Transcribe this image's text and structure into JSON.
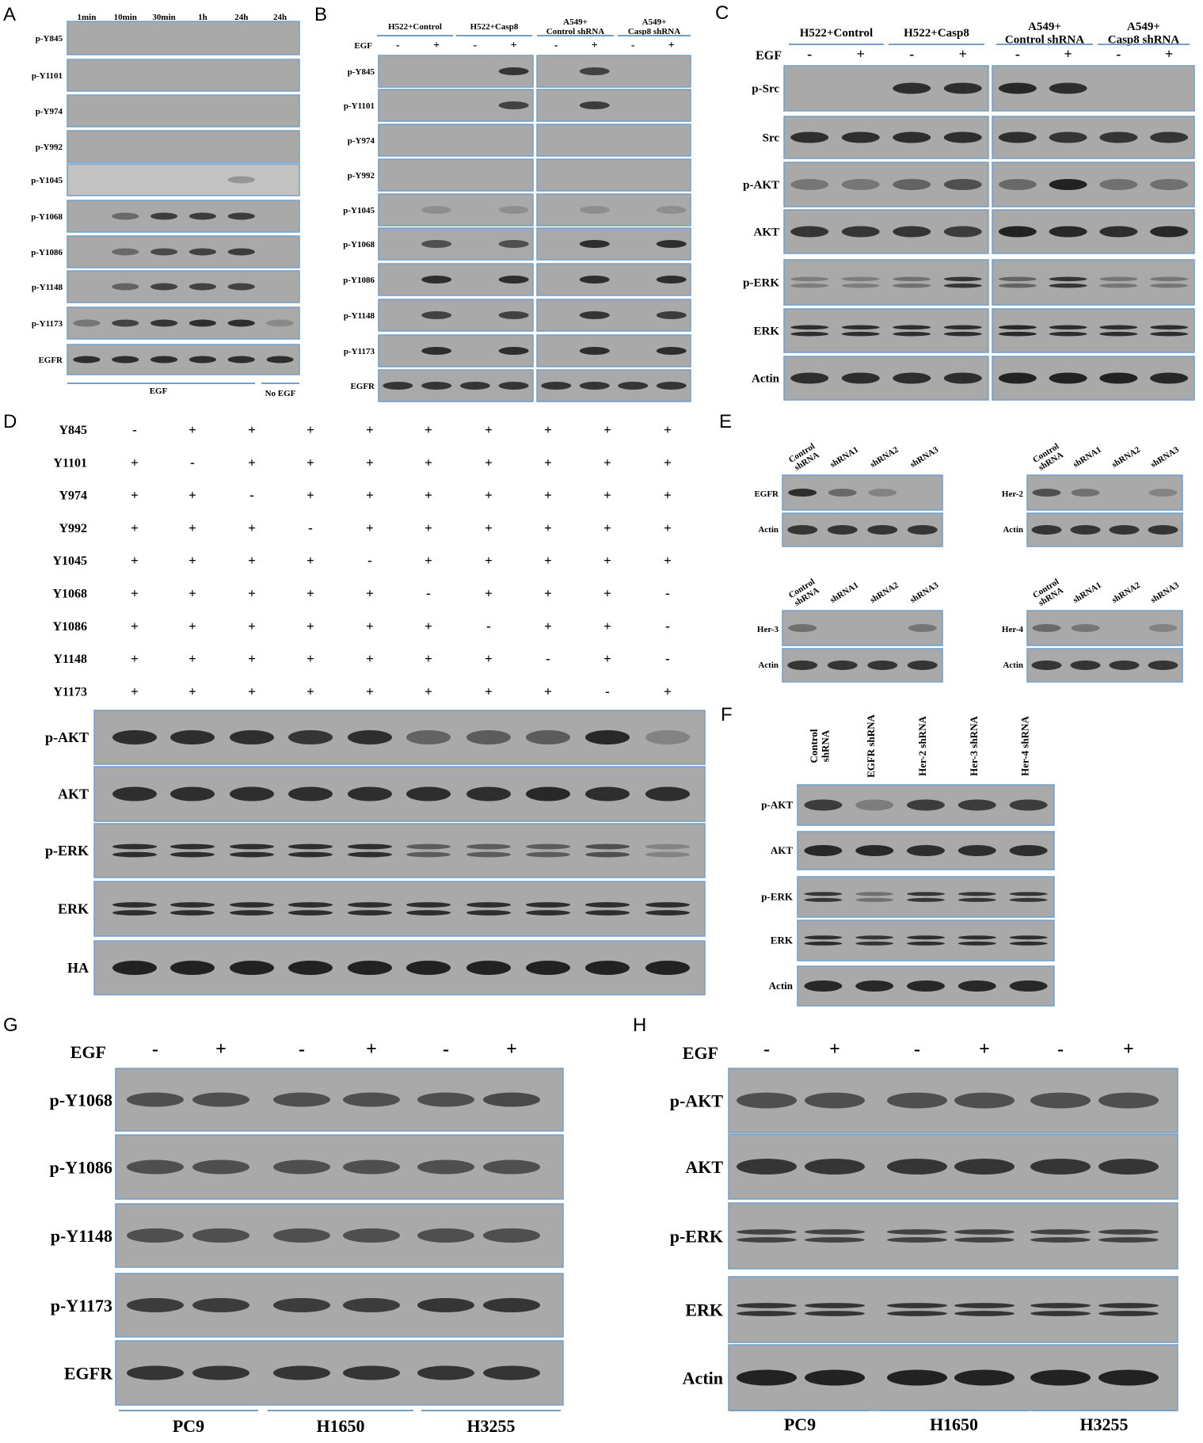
{
  "figure": {
    "panels": [
      {
        "letter": "A",
        "columns": [
          "1min",
          "10min",
          "30min",
          "1h",
          "24h",
          "24h"
        ],
        "rows": [
          {
            "label": "p-Y845",
            "bands": [
              0,
              0,
              0,
              0,
              0,
              0
            ]
          },
          {
            "label": "p-Y1101",
            "bands": [
              0,
              0,
              0,
              0,
              0,
              0
            ]
          },
          {
            "label": "p-Y974",
            "bands": [
              0,
              0,
              0,
              0,
              0,
              0
            ]
          },
          {
            "label": "p-Y992",
            "bands": [
              0,
              0,
              0,
              0,
              0,
              0
            ]
          },
          {
            "label": "p-Y1045",
            "bands": [
              0,
              0,
              0,
              0,
              0.2,
              0
            ]
          },
          {
            "label": "p-Y1068",
            "bands": [
              0,
              0.4,
              0.75,
              0.75,
              0.75,
              0
            ]
          },
          {
            "label": "p-Y1086",
            "bands": [
              0,
              0.4,
              0.65,
              0.7,
              0.75,
              0
            ]
          },
          {
            "label": "p-Y1148",
            "bands": [
              0,
              0.45,
              0.7,
              0.7,
              0.7,
              0
            ]
          },
          {
            "label": "p-Y1173",
            "bands": [
              0.3,
              0.7,
              0.8,
              0.85,
              0.85,
              0.15
            ]
          },
          {
            "label": "EGFR",
            "bands": [
              0.85,
              0.85,
              0.85,
              0.85,
              0.85,
              0.85
            ]
          }
        ],
        "bottom_groups": [
          {
            "label": "EGF"
          },
          {
            "label": "No EGF"
          }
        ]
      },
      {
        "letter": "B",
        "treatment_label": "EGF",
        "treatment_signs": [
          "-",
          "+",
          "-",
          "+",
          "-",
          "+",
          "-",
          "+"
        ],
        "groups": [
          "H522+Control",
          "H522+Casp8",
          "A549+\nControl shRNA",
          "A549+\nCasp8 shRNA"
        ],
        "rows": [
          {
            "label": "p-Y845",
            "bands": [
              0,
              0,
              0,
              0.8,
              0,
              0.7,
              0,
              0
            ]
          },
          {
            "label": "p-Y1101",
            "bands": [
              0,
              0,
              0,
              0.7,
              0,
              0.75,
              0,
              0
            ]
          },
          {
            "label": "p-Y974",
            "bands": [
              0,
              0,
              0,
              0,
              0,
              0,
              0,
              0
            ]
          },
          {
            "label": "p-Y992",
            "bands": [
              0,
              0,
              0,
              0,
              0,
              0,
              0,
              0
            ]
          },
          {
            "label": "p-Y1045",
            "bands": [
              0,
              0.12,
              0,
              0.12,
              0,
              0.12,
              0,
              0.12
            ]
          },
          {
            "label": "p-Y1068",
            "bands": [
              0,
              0.6,
              0,
              0.6,
              0,
              0.85,
              0,
              0.85
            ]
          },
          {
            "label": "p-Y1086",
            "bands": [
              0,
              0.85,
              0,
              0.85,
              0,
              0.85,
              0,
              0.85
            ]
          },
          {
            "label": "p-Y1148",
            "bands": [
              0,
              0.7,
              0,
              0.7,
              0,
              0.8,
              0,
              0.75
            ]
          },
          {
            "label": "p-Y1173",
            "bands": [
              0,
              0.85,
              0,
              0.85,
              0,
              0.85,
              0,
              0.85
            ]
          },
          {
            "label": "EGFR",
            "bands": [
              0.8,
              0.8,
              0.8,
              0.8,
              0.8,
              0.8,
              0.8,
              0.8
            ]
          }
        ]
      },
      {
        "letter": "C",
        "treatment_label": "EGF",
        "treatment_signs": [
          "-",
          "+",
          "-",
          "+",
          "-",
          "+",
          "-",
          "+"
        ],
        "groups": [
          "H522+Control",
          "H522+Casp8",
          "A549+\nControl shRNA",
          "A549+\nCasp8 shRNA"
        ],
        "rows": [
          {
            "label": "p-Src",
            "bands": [
              0,
              0,
              0.85,
              0.85,
              0.9,
              0.85,
              0,
              0
            ]
          },
          {
            "label": "Src",
            "bands": [
              0.85,
              0.85,
              0.85,
              0.85,
              0.85,
              0.8,
              0.8,
              0.8
            ]
          },
          {
            "label": "p-AKT",
            "bands": [
              0.3,
              0.3,
              0.45,
              0.6,
              0.4,
              0.95,
              0.35,
              0.35
            ]
          },
          {
            "label": "AKT",
            "bands": [
              0.8,
              0.8,
              0.8,
              0.75,
              0.95,
              0.9,
              0.85,
              0.9
            ]
          },
          {
            "label": "p-ERK",
            "bands": [
              0.25,
              0.25,
              0.35,
              0.8,
              0.45,
              0.8,
              0.3,
              0.3
            ]
          },
          {
            "label": "ERK",
            "bands": [
              0.85,
              0.85,
              0.85,
              0.85,
              0.9,
              0.85,
              0.85,
              0.85
            ]
          },
          {
            "label": "Actin",
            "bands": [
              0.85,
              0.85,
              0.85,
              0.85,
              0.95,
              0.95,
              0.95,
              0.9
            ]
          }
        ]
      },
      {
        "letter": "D",
        "mutation_grid": [
          {
            "label": "Y845",
            "signs": [
              "-",
              "+",
              "+",
              "+",
              "+",
              "+",
              "+",
              "+",
              "+",
              "+"
            ]
          },
          {
            "label": "Y1101",
            "signs": [
              "+",
              "-",
              "+",
              "+",
              "+",
              "+",
              "+",
              "+",
              "+",
              "+"
            ]
          },
          {
            "label": "Y974",
            "signs": [
              "+",
              "+",
              "-",
              "+",
              "+",
              "+",
              "+",
              "+",
              "+",
              "+"
            ]
          },
          {
            "label": "Y992",
            "signs": [
              "+",
              "+",
              "+",
              "-",
              "+",
              "+",
              "+",
              "+",
              "+",
              "+"
            ]
          },
          {
            "label": "Y1045",
            "signs": [
              "+",
              "+",
              "+",
              "+",
              "-",
              "+",
              "+",
              "+",
              "+",
              "+"
            ]
          },
          {
            "label": "Y1068",
            "signs": [
              "+",
              "+",
              "+",
              "+",
              "+",
              "-",
              "+",
              "+",
              "+",
              "-"
            ]
          },
          {
            "label": "Y1086",
            "signs": [
              "+",
              "+",
              "+",
              "+",
              "+",
              "+",
              "-",
              "+",
              "+",
              "-"
            ]
          },
          {
            "label": "Y1148",
            "signs": [
              "+",
              "+",
              "+",
              "+",
              "+",
              "+",
              "+",
              "-",
              "+",
              "-"
            ]
          },
          {
            "label": "Y1173",
            "signs": [
              "+",
              "+",
              "+",
              "+",
              "+",
              "+",
              "+",
              "+",
              "-",
              "+"
            ]
          }
        ],
        "rows": [
          {
            "label": "p-AKT",
            "bands": [
              0.85,
              0.85,
              0.85,
              0.8,
              0.85,
              0.45,
              0.5,
              0.5,
              0.9,
              0.2
            ]
          },
          {
            "label": "AKT",
            "bands": [
              0.85,
              0.85,
              0.85,
              0.85,
              0.85,
              0.85,
              0.85,
              0.9,
              0.85,
              0.85
            ]
          },
          {
            "label": "p-ERK",
            "bands": [
              0.85,
              0.85,
              0.85,
              0.85,
              0.85,
              0.5,
              0.5,
              0.5,
              0.6,
              0.2
            ]
          },
          {
            "label": "ERK",
            "bands": [
              0.85,
              0.85,
              0.85,
              0.85,
              0.85,
              0.85,
              0.85,
              0.85,
              0.85,
              0.85
            ]
          },
          {
            "label": "HA",
            "bands": [
              0.95,
              0.95,
              0.95,
              0.95,
              0.95,
              0.95,
              0.95,
              0.95,
              0.95,
              0.95
            ]
          }
        ]
      },
      {
        "letter": "E",
        "columns": [
          "Control\nshRNA",
          "shRNA1",
          "shRNA2",
          "shRNA3"
        ],
        "blots": [
          {
            "target": "EGFR",
            "target_bands": [
              0.85,
              0.4,
              0.2,
              0
            ],
            "loading": "Actin"
          },
          {
            "target": "Her-2",
            "target_bands": [
              0.6,
              0.35,
              0,
              0.2
            ],
            "loading": "Actin"
          },
          {
            "target": "Her-3",
            "target_bands": [
              0.35,
              0,
              0,
              0.3
            ],
            "loading": "Actin"
          },
          {
            "target": "Her-4",
            "target_bands": [
              0.4,
              0.3,
              0,
              0.2
            ],
            "loading": "Actin"
          }
        ],
        "loading_bands": [
          0.8,
          0.8,
          0.8,
          0.8
        ]
      },
      {
        "letter": "F",
        "columns": [
          "Control\nshRNA",
          "EGFR shRNA",
          "Her-2 shRNA",
          "Her-3 shRNA",
          "Her-4 shRNA"
        ],
        "rows": [
          {
            "label": "p-AKT",
            "bands": [
              0.75,
              0.25,
              0.75,
              0.75,
              0.75
            ]
          },
          {
            "label": "AKT",
            "bands": [
              0.9,
              0.9,
              0.85,
              0.85,
              0.85
            ]
          },
          {
            "label": "p-ERK",
            "bands": [
              0.8,
              0.35,
              0.8,
              0.8,
              0.8
            ]
          },
          {
            "label": "ERK",
            "bands": [
              0.85,
              0.8,
              0.85,
              0.85,
              0.85
            ]
          },
          {
            "label": "Actin",
            "bands": [
              0.9,
              0.9,
              0.9,
              0.9,
              0.9
            ]
          }
        ]
      },
      {
        "letter": "G",
        "treatment_label": "EGF",
        "treatment_signs": [
          "-",
          "+",
          "-",
          "+",
          "-",
          "+"
        ],
        "rows": [
          {
            "label": "p-Y1068",
            "bands": [
              0.6,
              0.6,
              0.6,
              0.6,
              0.6,
              0.65
            ]
          },
          {
            "label": "p-Y1086",
            "bands": [
              0.6,
              0.6,
              0.6,
              0.6,
              0.6,
              0.6
            ]
          },
          {
            "label": "p-Y1148",
            "bands": [
              0.6,
              0.6,
              0.6,
              0.6,
              0.6,
              0.6
            ]
          },
          {
            "label": "p-Y1173",
            "bands": [
              0.75,
              0.75,
              0.75,
              0.75,
              0.8,
              0.8
            ]
          },
          {
            "label": "EGFR",
            "bands": [
              0.8,
              0.8,
              0.8,
              0.8,
              0.8,
              0.8
            ]
          }
        ],
        "cell_lines": [
          "PC9",
          "H1650",
          "H3255"
        ]
      },
      {
        "letter": "H",
        "treatment_label": "EGF",
        "treatment_signs": [
          "-",
          "+",
          "-",
          "+",
          "-",
          "+"
        ],
        "rows": [
          {
            "label": "p-AKT",
            "bands": [
              0.6,
              0.6,
              0.6,
              0.6,
              0.6,
              0.6
            ]
          },
          {
            "label": "AKT",
            "bands": [
              0.8,
              0.8,
              0.8,
              0.8,
              0.8,
              0.8
            ]
          },
          {
            "label": "p-ERK",
            "bands": [
              0.7,
              0.7,
              0.7,
              0.7,
              0.7,
              0.7
            ]
          },
          {
            "label": "ERK",
            "bands": [
              0.8,
              0.8,
              0.8,
              0.8,
              0.8,
              0.8
            ]
          },
          {
            "label": "Actin",
            "bands": [
              0.95,
              0.95,
              0.95,
              0.95,
              0.95,
              0.95
            ]
          }
        ],
        "cell_lines": [
          "PC9",
          "H1650",
          "H3255"
        ]
      }
    ]
  },
  "colors": {
    "blot_background": "#a9a9a9",
    "blot_background_light": "#c2c2c2",
    "frame": "#6f9fca",
    "band": "#1f1f1f",
    "text": "#000000"
  }
}
